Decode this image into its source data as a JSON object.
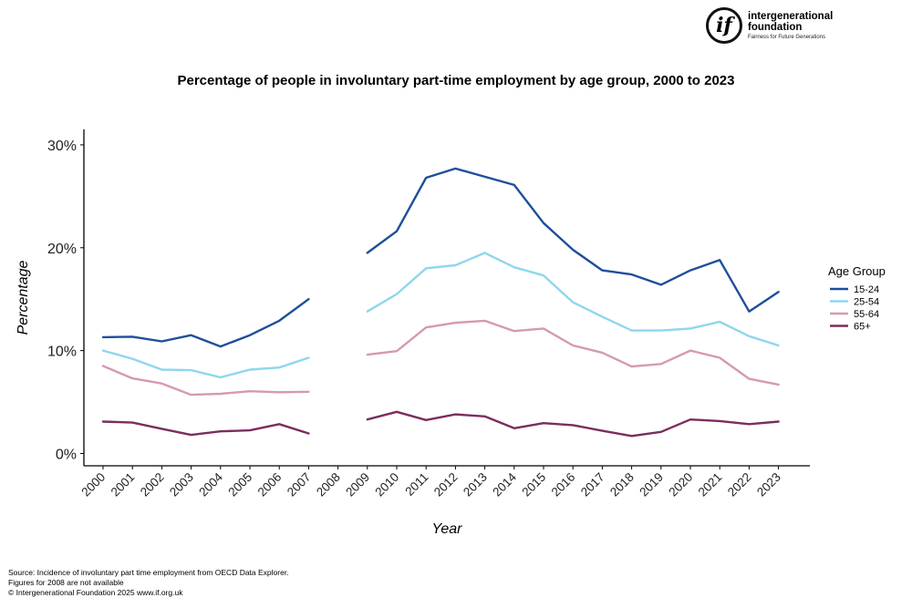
{
  "brand": {
    "logo_mark": "if",
    "name_line1": "intergenerational",
    "name_line2": "foundation",
    "tagline": "Fairness for Future Generations"
  },
  "footer": {
    "source": "Source: Incidence of involuntary part time employment from OECD Data Explorer.",
    "note": "Figures for 2008 are not available",
    "copyright": "© Intergenerational Foundation 2025 www.if.org.uk"
  },
  "chart_data": {
    "type": "line",
    "title": "Percentage of people in involuntary part-time employment by age group, 2000 to 2023",
    "xlabel": "Year",
    "ylabel": "Percentage",
    "x": [
      "2000",
      "2001",
      "2002",
      "2003",
      "2004",
      "2005",
      "2006",
      "2007",
      "2008",
      "2009",
      "2010",
      "2011",
      "2012",
      "2013",
      "2014",
      "2015",
      "2016",
      "2017",
      "2018",
      "2019",
      "2020",
      "2021",
      "2022",
      "2023"
    ],
    "ylim": [
      -1.2,
      31.5
    ],
    "yticks": [
      0,
      10,
      20,
      30
    ],
    "ytick_labels": [
      "0%",
      "10%",
      "20%",
      "30%"
    ],
    "legend_title": "Age Group",
    "legend_position": "right",
    "grid": false,
    "series": [
      {
        "name": "15-24",
        "color": "#1f4e9b",
        "values": [
          11.3,
          11.35,
          10.9,
          11.5,
          10.4,
          11.5,
          12.9,
          15.0,
          null,
          19.5,
          21.6,
          26.8,
          27.7,
          26.9,
          26.1,
          22.4,
          19.8,
          17.8,
          17.4,
          16.4,
          17.8,
          18.8,
          13.8,
          15.7
        ]
      },
      {
        "name": "25-54",
        "color": "#8fd6ee",
        "values": [
          10.0,
          9.2,
          8.15,
          8.1,
          7.4,
          8.15,
          8.35,
          9.3,
          null,
          13.8,
          15.5,
          18.0,
          18.3,
          19.5,
          18.1,
          17.3,
          14.7,
          13.3,
          11.95,
          11.95,
          12.15,
          12.8,
          11.4,
          10.5
        ]
      },
      {
        "name": "55-64",
        "color": "#d59aaf",
        "values": [
          8.5,
          7.3,
          6.8,
          5.7,
          5.8,
          6.05,
          5.95,
          6.0,
          null,
          9.6,
          9.95,
          12.25,
          12.7,
          12.9,
          11.9,
          12.15,
          10.5,
          9.8,
          8.45,
          8.7,
          10.0,
          9.3,
          7.25,
          6.7
        ]
      },
      {
        "name": "65+",
        "color": "#7b2d5d",
        "values": [
          3.1,
          3.0,
          2.4,
          1.8,
          2.15,
          2.25,
          2.85,
          1.95,
          null,
          3.3,
          4.05,
          3.25,
          3.8,
          3.6,
          2.45,
          2.95,
          2.75,
          2.2,
          1.7,
          2.1,
          3.3,
          3.15,
          2.85,
          3.1
        ]
      }
    ]
  }
}
